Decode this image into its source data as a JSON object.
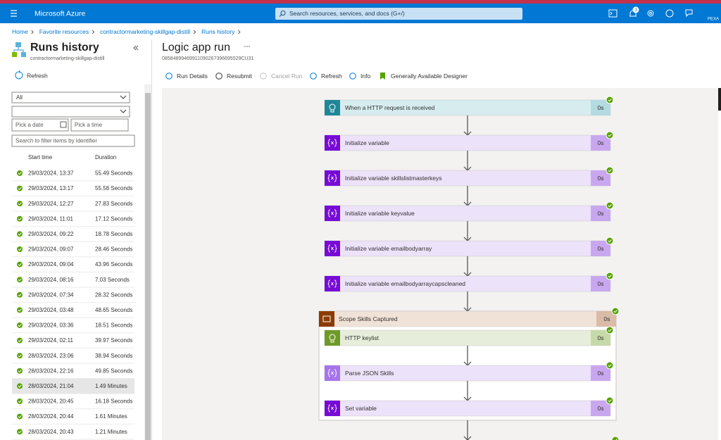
{
  "top_bar": {
    "brand": "Microsoft Azure",
    "search_placeholder": "Search resources, services, and docs (G+/)",
    "notification_count": "3",
    "user": "PEXA"
  },
  "breadcrumb": [
    "Home",
    "Favorite resources",
    "contractormarketing-skillgap-distill",
    "Runs history"
  ],
  "runs_panel": {
    "title": "Runs history",
    "subtitle": "contractormarketing-skillgap-distill",
    "refresh": "Refresh",
    "status_filter": "All",
    "date_placeholder": "Pick a date",
    "time_placeholder": "Pick a time",
    "search_placeholder": "Search to filter items by identifier",
    "columns": [
      "Start time",
      "Duration"
    ],
    "runs": [
      {
        "start": "29/03/2024, 13:37",
        "duration": "55.49 Seconds"
      },
      {
        "start": "29/03/2024, 13:17",
        "duration": "55.58 Seconds"
      },
      {
        "start": "29/03/2024, 12:27",
        "duration": "27.83 Seconds"
      },
      {
        "start": "29/03/2024, 11:01",
        "duration": "17.12 Seconds"
      },
      {
        "start": "29/03/2024, 09:22",
        "duration": "18.78 Seconds"
      },
      {
        "start": "29/03/2024, 09:07",
        "duration": "28.46 Seconds"
      },
      {
        "start": "29/03/2024, 09:04",
        "duration": "43.96 Seconds"
      },
      {
        "start": "29/03/2024, 08:16",
        "duration": "7.03 Seconds"
      },
      {
        "start": "29/03/2024, 07:34",
        "duration": "28.32 Seconds"
      },
      {
        "start": "29/03/2024, 03:48",
        "duration": "48.65 Seconds"
      },
      {
        "start": "29/03/2024, 03:36",
        "duration": "18.51 Seconds"
      },
      {
        "start": "29/03/2024, 02:11",
        "duration": "39.97 Seconds"
      },
      {
        "start": "28/03/2024, 23:06",
        "duration": "38.94 Seconds"
      },
      {
        "start": "28/03/2024, 22:16",
        "duration": "49.85 Seconds"
      },
      {
        "start": "28/03/2024, 21:04",
        "duration": "1.49 Minutes",
        "selected": true
      },
      {
        "start": "28/03/2024, 20:45",
        "duration": "16.18 Seconds"
      },
      {
        "start": "28/03/2024, 20:44",
        "duration": "1.61 Minutes"
      },
      {
        "start": "28/03/2024, 20:43",
        "duration": "1.21 Minutes"
      }
    ]
  },
  "run": {
    "title": "Logic app run",
    "id": "08584899469911090267396695529CU31",
    "toolbar": [
      {
        "label": "Run Details"
      },
      {
        "label": "Resubmit"
      },
      {
        "label": "Cancel Run",
        "disabled": true
      },
      {
        "label": "Refresh"
      },
      {
        "label": "Info"
      },
      {
        "label": "Generally Available Designer"
      }
    ],
    "steps": [
      {
        "label": "When a HTTP request is received",
        "duration": "0s",
        "icon": "http",
        "color": "#1f8797",
        "fill": "#d7ecef",
        "duration_fill": "#b4dbe1"
      },
      {
        "label": "Initialize variable",
        "duration": "0s",
        "icon": "variable",
        "color": "#770bd6",
        "fill": "#ece2f9",
        "duration_fill": "#c9a7ef"
      },
      {
        "label": "Initialize variable skillslistmasterkeys",
        "duration": "0s",
        "icon": "variable",
        "color": "#770bd6",
        "fill": "#ece2f9",
        "duration_fill": "#c9a7ef"
      },
      {
        "label": "Initialize variable keyvalue",
        "duration": "0s",
        "icon": "variable",
        "color": "#770bd6",
        "fill": "#ece2f9",
        "duration_fill": "#c9a7ef"
      },
      {
        "label": "Initialize variable emailbodyarray",
        "duration": "0s",
        "icon": "variable",
        "color": "#770bd6",
        "fill": "#ece2f9",
        "duration_fill": "#c9a7ef"
      },
      {
        "label": "Initialize variable emailbodyarraycapscleaned",
        "duration": "0s",
        "icon": "variable",
        "color": "#770bd6",
        "fill": "#ece2f9",
        "duration_fill": "#c9a7ef"
      }
    ],
    "scope": {
      "label": "Scope Skills Captured",
      "duration": "0s",
      "color": "#8c3b00",
      "fill": "#f1e2d8",
      "duration_fill": "#d9bba8",
      "steps": [
        {
          "label": "HTTP keylist",
          "duration": "0s",
          "icon": "http",
          "color": "#6f9a2a",
          "fill": "#e6eedb",
          "duration_fill": "#c6d9a8"
        },
        {
          "label": "Parse JSON Skills",
          "duration": "0s",
          "icon": "variable",
          "color": "#a774ec",
          "fill": "#ece2f9",
          "duration_fill": "#c9a7ef"
        },
        {
          "label": "Set variable",
          "duration": "0s",
          "icon": "variable",
          "color": "#770bd6",
          "fill": "#ece2f9",
          "duration_fill": "#c9a7ef"
        }
      ]
    }
  }
}
